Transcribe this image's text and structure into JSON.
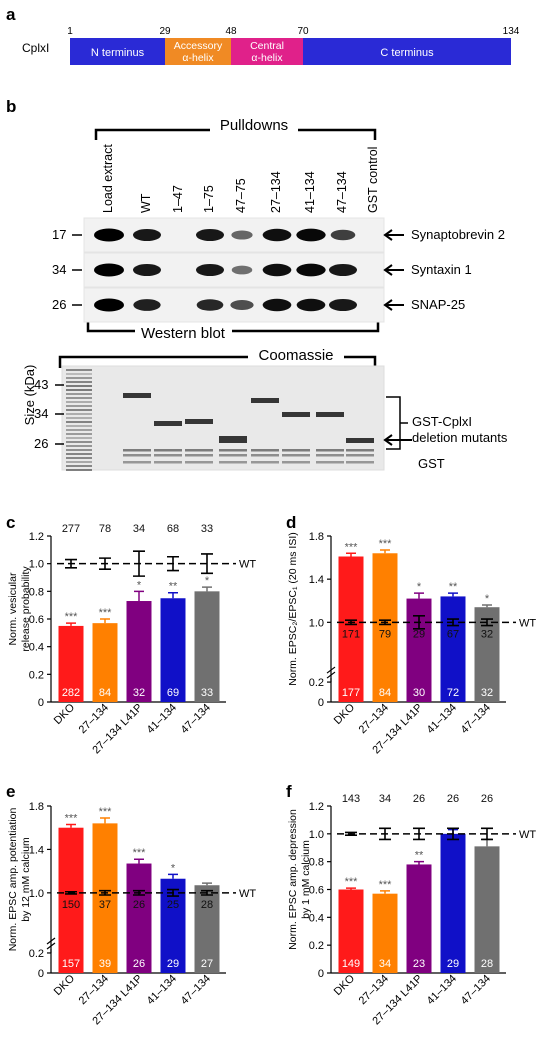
{
  "panel_labels": {
    "a": "a",
    "b": "b",
    "c": "c",
    "d": "d",
    "e": "e",
    "f": "f"
  },
  "panel_a": {
    "protein_label": "CplxI",
    "ticks": [
      "1",
      "29",
      "48",
      "70",
      "134"
    ],
    "domains": [
      {
        "lines": [
          "N terminus"
        ],
        "color": "#2a2ad6",
        "text_color": "#ffffff"
      },
      {
        "lines": [
          "Accessory",
          "α-helix"
        ],
        "color": "#f08a24",
        "text_color": "#ffffff"
      },
      {
        "lines": [
          "Central",
          "α-helix"
        ],
        "color": "#e0218a",
        "text_color": "#ffffff"
      },
      {
        "lines": [
          "C terminus"
        ],
        "color": "#2a2ad6",
        "text_color": "#ffffff"
      }
    ]
  },
  "panel_b": {
    "pulldowns_label": "Pulldowns",
    "lane_labels": [
      "Load extract",
      "WT",
      "1–47",
      "1–75",
      "47–75",
      "27–134",
      "41–134",
      "47–134",
      "GST control"
    ],
    "blot_markers": [
      "17",
      "34",
      "26"
    ],
    "blot_targets": [
      "Synaptobrevin 2",
      "Syntaxin 1",
      "SNAP-25"
    ],
    "western_label": "Western blot",
    "coomassie_label": "Coomassie",
    "size_label": "Size (kDa)",
    "coomassie_markers": [
      "43",
      "34",
      "26"
    ],
    "gst_mutants_label": [
      "GST-CplxI",
      "deletion mutants"
    ],
    "gst_label": "GST"
  },
  "wt_label": "WT",
  "chart_data": [
    {
      "panel": "c",
      "type": "bar",
      "categories": [
        "DKO",
        "27–134",
        "27–134 L41P",
        "41–134",
        "47–134"
      ],
      "values": [
        0.55,
        0.57,
        0.73,
        0.75,
        0.8
      ],
      "errors": [
        0.02,
        0.03,
        0.07,
        0.04,
        0.03
      ],
      "colors": [
        "#ff1a1a",
        "#ff8000",
        "#800080",
        "#1010c8",
        "#707070"
      ],
      "significance": [
        "***",
        "***",
        "*",
        "**",
        "*"
      ],
      "n_inside": [
        "282",
        "84",
        "32",
        "69",
        "33"
      ],
      "n_wt": [
        "277",
        "78",
        "34",
        "68",
        "33"
      ],
      "wt_errors": [
        0.03,
        0.04,
        0.09,
        0.05,
        0.07
      ],
      "ylabel": [
        "Norm. vesicular",
        "release probability"
      ],
      "ylim": [
        0,
        1.2
      ],
      "yticks": [
        "0",
        "0.2",
        "0.4",
        "0.6",
        "0.8",
        "1.0",
        "1.2"
      ]
    },
    {
      "panel": "d",
      "type": "bar",
      "categories": [
        "DKO",
        "27–134",
        "27–134 L41P",
        "41–134",
        "47–134"
      ],
      "values": [
        1.61,
        1.64,
        1.22,
        1.24,
        1.14
      ],
      "errors": [
        0.03,
        0.03,
        0.05,
        0.03,
        0.02
      ],
      "colors": [
        "#ff1a1a",
        "#ff8000",
        "#800080",
        "#1010c8",
        "#707070"
      ],
      "significance": [
        "***",
        "***",
        "*",
        "**",
        "*"
      ],
      "n_inside": [
        "177",
        "84",
        "30",
        "72",
        "32"
      ],
      "n_wt": [
        "171",
        "79",
        "29",
        "67",
        "32"
      ],
      "wt_errors": [
        0.02,
        0.02,
        0.06,
        0.03,
        0.03
      ],
      "ylabel": [
        "Norm. EPSC₂/EPSC₁ (20 ms ISI)"
      ],
      "ylim": [
        0,
        1.8
      ],
      "yticks": [
        "0",
        "0.2",
        "1.0",
        "1.4",
        "1.8"
      ],
      "axis_break": true
    },
    {
      "panel": "e",
      "type": "bar",
      "categories": [
        "DKO",
        "27–134",
        "27–134 L41P",
        "41–134",
        "47–134"
      ],
      "values": [
        1.6,
        1.64,
        1.27,
        1.13,
        1.07
      ],
      "errors": [
        0.03,
        0.05,
        0.04,
        0.04,
        0.02
      ],
      "colors": [
        "#ff1a1a",
        "#ff8000",
        "#800080",
        "#1010c8",
        "#707070"
      ],
      "significance": [
        "***",
        "***",
        "***",
        "*",
        ""
      ],
      "n_inside": [
        "157",
        "39",
        "26",
        "29",
        "27"
      ],
      "n_wt": [
        "150",
        "37",
        "26",
        "25",
        "28"
      ],
      "wt_errors": [
        0.01,
        0.02,
        0.02,
        0.03,
        0.02
      ],
      "ylabel": [
        "Norm. EPSC amp. potentiation",
        "by 12 mM calcium"
      ],
      "ylim": [
        0,
        1.8
      ],
      "yticks": [
        "0",
        "0.2",
        "1.0",
        "1.4",
        "1.8"
      ],
      "axis_break": true
    },
    {
      "panel": "f",
      "type": "bar",
      "categories": [
        "DKO",
        "27–134",
        "27–134 L41P",
        "41–134",
        "47–134"
      ],
      "values": [
        0.6,
        0.57,
        0.78,
        1.0,
        0.91
      ],
      "errors": [
        0.01,
        0.02,
        0.02,
        0.03,
        0.05
      ],
      "colors": [
        "#ff1a1a",
        "#ff8000",
        "#800080",
        "#1010c8",
        "#707070"
      ],
      "significance": [
        "***",
        "***",
        "**",
        "",
        ""
      ],
      "n_inside": [
        "149",
        "34",
        "23",
        "29",
        "28"
      ],
      "n_wt": [
        "143",
        "34",
        "26",
        "26",
        "26"
      ],
      "wt_errors": [
        0.01,
        0.04,
        0.04,
        0.04,
        0.04
      ],
      "ylabel": [
        "Norm. EPSC amp. depression",
        "by 1 mM calcium"
      ],
      "ylim": [
        0,
        1.2
      ],
      "yticks": [
        "0",
        "0.2",
        "0.4",
        "0.6",
        "0.8",
        "1.0",
        "1.2"
      ]
    }
  ]
}
